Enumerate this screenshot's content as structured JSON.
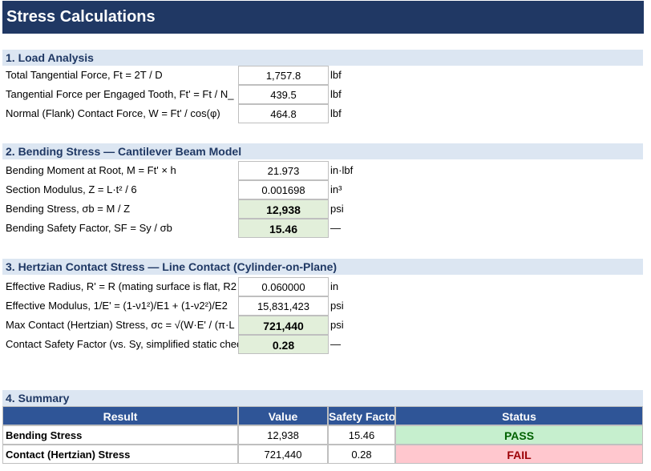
{
  "header": {
    "title": "Stress Calculations"
  },
  "sections": [
    {
      "title": "1. Load Analysis",
      "rows": [
        {
          "label": "Total Tangential Force, Ft = 2T / D",
          "value": "1,757.8",
          "unit": "lbf"
        },
        {
          "label": "Tangential Force per Engaged Tooth, Ft' = Ft / N_",
          "value": "439.5",
          "unit": "lbf"
        },
        {
          "label": "Normal (Flank) Contact Force, W = Ft' / cos(φ)",
          "value": "464.8",
          "unit": "lbf"
        }
      ]
    },
    {
      "title": "2. Bending Stress — Cantilever Beam Model",
      "rows": [
        {
          "label": "Bending Moment at Root, M = Ft' × h",
          "value": "21.973",
          "unit": "in·lbf"
        },
        {
          "label": "Section Modulus, Z = L·t² / 6",
          "value": "0.001698",
          "unit": "in³"
        },
        {
          "label": "Bending Stress, σb = M / Z",
          "value": "12,938",
          "unit": "psi",
          "highlight": true
        },
        {
          "label": "Bending Safety Factor, SF = Sy / σb",
          "value": "15.46",
          "unit": "—",
          "highlight": true
        }
      ]
    },
    {
      "title": "3. Hertzian Contact Stress — Line Contact (Cylinder-on-Plane)",
      "rows": [
        {
          "label": "Effective Radius, R' = R (mating surface is flat, R2",
          "value": "0.060000",
          "unit": "in"
        },
        {
          "label": "Effective Modulus, 1/E' = (1-ν1²)/E1 + (1-ν2²)/E2",
          "value": "15,831,423",
          "unit": "psi"
        },
        {
          "label": "Max Contact (Hertzian) Stress, σc = √(W·E' / (π·L",
          "value": "721,440",
          "unit": "psi",
          "highlight": true
        },
        {
          "label": "Contact Safety Factor (vs. Sy, simplified static check)",
          "value": "0.28",
          "unit": "—",
          "highlight": true
        }
      ]
    }
  ],
  "summary": {
    "title": "4. Summary",
    "columns": [
      "Result",
      "Value",
      "Safety Factor",
      "Status"
    ],
    "rows": [
      {
        "cells": [
          "Bending Stress",
          "12,938",
          "15.46",
          "PASS"
        ],
        "status_ok": true
      },
      {
        "cells": [
          "Contact (Hertzian) Stress",
          "721,440",
          "0.28",
          "FAIL"
        ],
        "status_ok": false
      }
    ]
  }
}
